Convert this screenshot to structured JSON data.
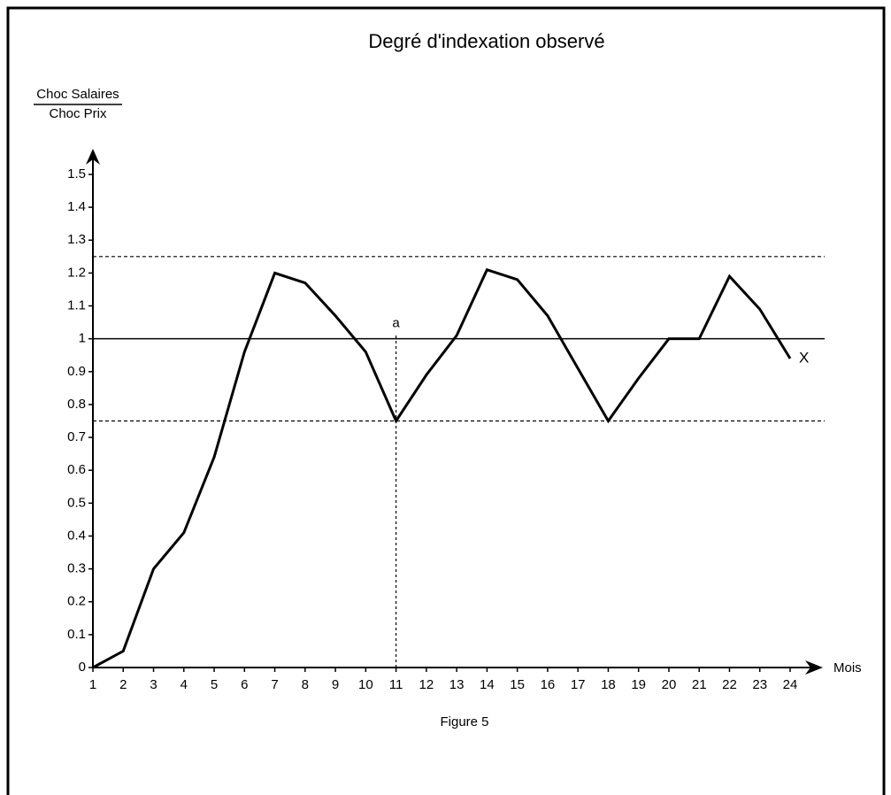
{
  "chart_data": {
    "type": "line",
    "title": "Degré d'indexation observé",
    "y_label_top": "Choc Salaires",
    "y_label_bottom": "Choc Prix",
    "x_label": "Mois",
    "caption": "Figure 5",
    "color": "#000000",
    "x": [
      1,
      2,
      3,
      4,
      5,
      6,
      7,
      8,
      9,
      10,
      11,
      12,
      13,
      14,
      15,
      16,
      17,
      18,
      19,
      20,
      21,
      22,
      23,
      24
    ],
    "values": [
      0,
      0.05,
      0.3,
      0.41,
      0.64,
      0.96,
      1.2,
      1.17,
      1.07,
      0.96,
      0.75,
      0.89,
      1.01,
      1.21,
      1.18,
      1.07,
      0.91,
      0.75,
      0.88,
      1.0,
      1.0,
      1.19,
      1.09,
      0.94
    ],
    "xlim": [
      1,
      24
    ],
    "xticks": [
      1,
      2,
      3,
      4,
      5,
      6,
      7,
      8,
      9,
      10,
      11,
      12,
      13,
      14,
      15,
      16,
      17,
      18,
      19,
      20,
      21,
      22,
      23,
      24
    ],
    "ylim": [
      0,
      1.5
    ],
    "yticks": [
      0,
      0.1,
      0.2,
      0.3,
      0.4,
      0.5,
      0.6,
      0.7,
      0.8,
      0.9,
      1,
      1.1,
      1.2,
      1.3,
      1.4,
      1.5
    ],
    "reference_lines": [
      {
        "value": 1.25,
        "style": "dashed"
      },
      {
        "value": 1,
        "style": "solid"
      },
      {
        "value": 0.75,
        "style": "dashed"
      }
    ],
    "annotations": [
      {
        "text": "a",
        "x": 11,
        "y": 0.75
      },
      {
        "text": "X",
        "x": 24,
        "y": 0.94
      }
    ]
  }
}
